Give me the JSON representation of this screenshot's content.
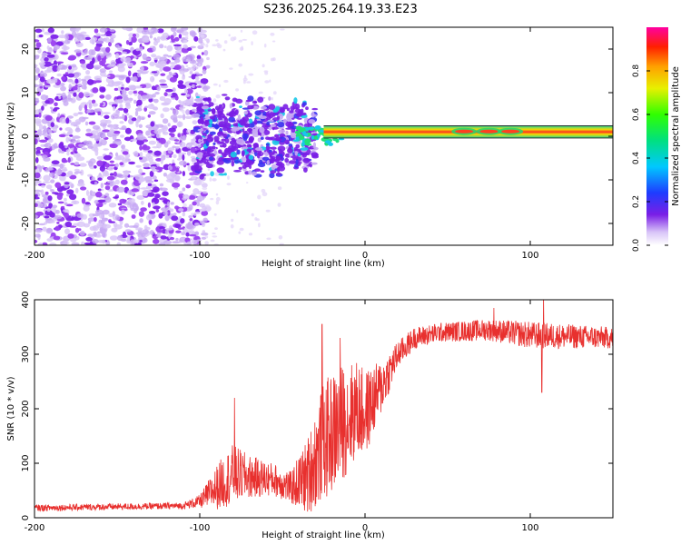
{
  "title": "S236.2025.264.19.33.E23",
  "colors": {
    "snr_line": "#e8302e",
    "spec_dark": "#7a1ee6",
    "spec_light": "#d9c2f7",
    "frame": "#000000"
  },
  "chart_data": [
    {
      "type": "heatmap",
      "title": "S236.2025.264.19.33.E23",
      "xlabel": "Height of straight line (km)",
      "ylabel": "Frequency (Hz)",
      "xlim": [
        -200,
        150
      ],
      "ylim": [
        -25,
        25
      ],
      "xticks": [
        {
          "v": -200,
          "label": "-200"
        },
        {
          "v": -100,
          "label": "-100"
        },
        {
          "v": 0,
          "label": "0"
        },
        {
          "v": 100,
          "label": "100"
        }
      ],
      "yticks": [
        {
          "v": 20,
          "label": "20"
        },
        {
          "v": 10,
          "label": "10"
        },
        {
          "v": 0,
          "label": "0"
        },
        {
          "v": -10,
          "label": "-10"
        },
        {
          "v": -20,
          "label": "-20"
        }
      ],
      "colorbar": {
        "label": "Normalized spectral amplitude",
        "range": [
          0,
          1
        ],
        "ticks": [
          {
            "v": 0.0,
            "label": "0.0"
          },
          {
            "v": 0.2,
            "label": "0.2"
          },
          {
            "v": 0.4,
            "label": "0.4"
          },
          {
            "v": 0.6,
            "label": "0.6"
          },
          {
            "v": 0.8,
            "label": "0.8"
          }
        ]
      },
      "description_of_content": "noise scatter for heights below -100 km; broadband energy between -100 and -30 km; narrow band near 1 Hz from -30 to 150 km with amplitude near 1.0"
    },
    {
      "type": "line",
      "xlabel": "Height of straight line (km)",
      "ylabel": "SNR (10 * v/v)",
      "xlim": [
        -200,
        150
      ],
      "ylim": [
        0,
        400
      ],
      "xticks": [
        {
          "v": -200,
          "label": "-200"
        },
        {
          "v": -100,
          "label": "-100"
        },
        {
          "v": 0,
          "label": "0"
        },
        {
          "v": 100,
          "label": "100"
        }
      ],
      "yticks": [
        {
          "v": 400,
          "label": "400"
        },
        {
          "v": 300,
          "label": "300"
        },
        {
          "v": 200,
          "label": "200"
        },
        {
          "v": 100,
          "label": "100"
        },
        {
          "v": 0,
          "label": "0"
        }
      ],
      "trend": [
        [
          -200,
          18
        ],
        [
          -110,
          22
        ],
        [
          -100,
          30
        ],
        [
          -88,
          60
        ],
        [
          -80,
          80
        ],
        [
          -70,
          75
        ],
        [
          -55,
          70
        ],
        [
          -45,
          55
        ],
        [
          -35,
          75
        ],
        [
          -25,
          140
        ],
        [
          -15,
          170
        ],
        [
          -5,
          200
        ],
        [
          0,
          190
        ],
        [
          10,
          240
        ],
        [
          20,
          300
        ],
        [
          30,
          330
        ],
        [
          45,
          340
        ],
        [
          75,
          345
        ],
        [
          100,
          335
        ],
        [
          150,
          330
        ]
      ],
      "noise": [
        [
          -200,
          6
        ],
        [
          -110,
          6
        ],
        [
          -100,
          12
        ],
        [
          -88,
          45
        ],
        [
          -80,
          55
        ],
        [
          -70,
          40
        ],
        [
          -55,
          30
        ],
        [
          -45,
          30
        ],
        [
          -35,
          70
        ],
        [
          -25,
          110
        ],
        [
          -15,
          110
        ],
        [
          -5,
          90
        ],
        [
          0,
          80
        ],
        [
          10,
          50
        ],
        [
          20,
          25
        ],
        [
          30,
          20
        ],
        [
          45,
          18
        ],
        [
          75,
          20
        ],
        [
          100,
          25
        ],
        [
          150,
          20
        ]
      ],
      "spikes": [
        {
          "x": -79,
          "y": 220
        },
        {
          "x": -26,
          "y": 355
        },
        {
          "x": -15,
          "y": 330
        },
        {
          "x": 78,
          "y": 385
        },
        {
          "x": 108,
          "y": 410
        },
        {
          "x": 107,
          "y": 230
        }
      ]
    }
  ]
}
